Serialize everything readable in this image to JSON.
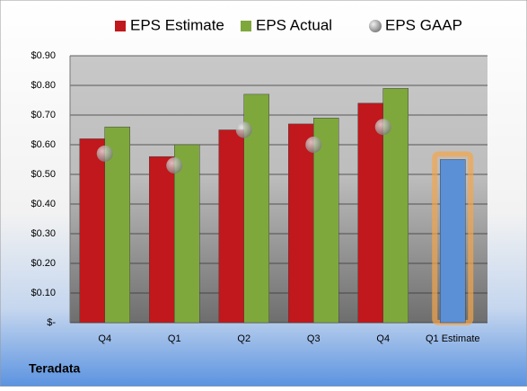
{
  "chart_data": {
    "type": "bar",
    "company": "Teradata",
    "categories": [
      "Q4",
      "Q1",
      "Q2",
      "Q3",
      "Q4",
      "Q1 Estimate"
    ],
    "series": [
      {
        "name": "EPS Estimate",
        "type": "bar",
        "color": "#c0181c",
        "values": [
          0.62,
          0.56,
          0.65,
          0.67,
          0.74,
          0.55
        ],
        "point_colors": [
          null,
          null,
          null,
          null,
          null,
          "#5b8fd6"
        ]
      },
      {
        "name": "EPS Actual",
        "type": "bar",
        "color": "#7fa83c",
        "values": [
          0.66,
          0.6,
          0.77,
          0.69,
          0.79,
          null
        ]
      },
      {
        "name": "EPS GAAP",
        "type": "scatter",
        "color": "#a9a9a9",
        "values": [
          0.57,
          0.53,
          0.65,
          0.6,
          0.66,
          null
        ]
      }
    ],
    "ylim": [
      0,
      0.9
    ],
    "yticks": [
      {
        "value": 0,
        "label": "$-"
      },
      {
        "value": 0.1,
        "label": "$0.10"
      },
      {
        "value": 0.2,
        "label": "$0.20"
      },
      {
        "value": 0.3,
        "label": "$0.30"
      },
      {
        "value": 0.4,
        "label": "$0.40"
      },
      {
        "value": 0.5,
        "label": "$0.50"
      },
      {
        "value": 0.6,
        "label": "$0.60"
      },
      {
        "value": 0.7,
        "label": "$0.70"
      },
      {
        "value": 0.8,
        "label": "$0.80"
      },
      {
        "value": 0.9,
        "label": "$0.90"
      }
    ],
    "grid": true
  }
}
